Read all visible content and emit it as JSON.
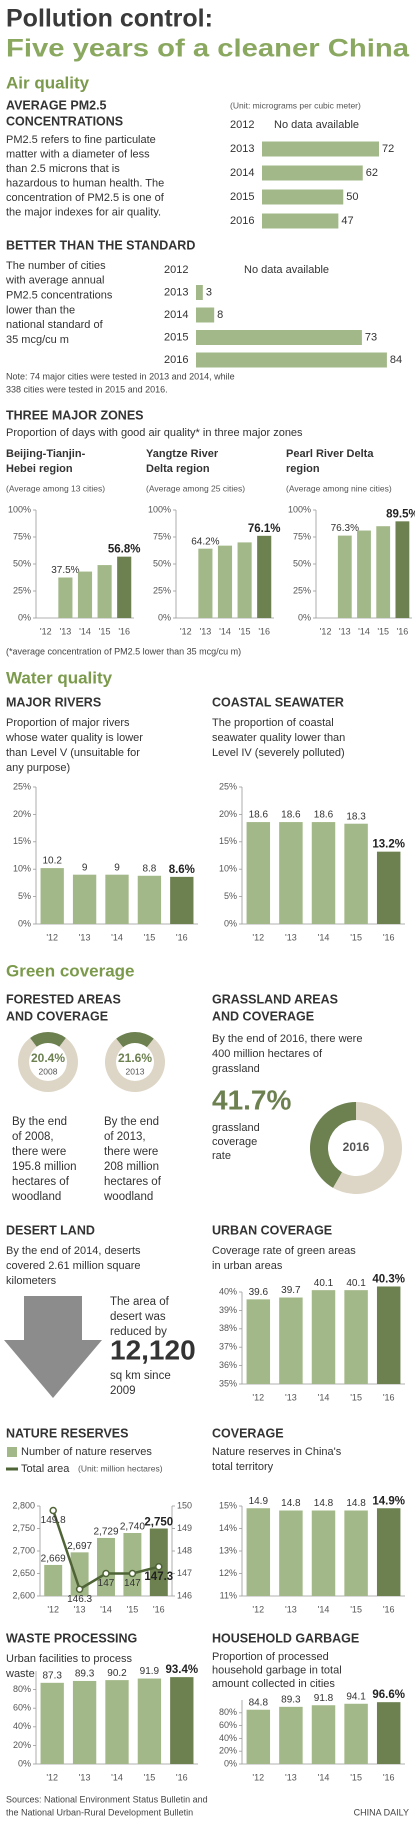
{
  "header": {
    "title": "Pollution control:",
    "subtitle": "Five years of a cleaner China"
  },
  "sections": [
    "Air quality",
    "Water quality",
    "Green coverage"
  ],
  "zones": {
    "title": "THREE MAJOR ZONES",
    "subtitle": "Proportion of days with good air quality* in three major zones",
    "footnote": "(*average concentration of PM2.5 lower than 35 mcg/cu m)"
  },
  "forest": {
    "title": [
      "FORESTED AREAS",
      "AND COVERAGE"
    ]
  },
  "desert": {
    "title": "DESERT LAND",
    "description": [
      "By the end of 2014, deserts",
      "covered 2.61 million square",
      "kilometers"
    ],
    "callout": [
      "The area of",
      "desert was",
      "reduced by"
    ],
    "value": "12,120",
    "unit": [
      "sq km since",
      "2009"
    ]
  },
  "footer": {
    "sources": [
      "Sources: National Environment Status Bulletin and",
      "the National Urban-Rural Development Bulletin"
    ],
    "credit": "CHINA DAILY"
  },
  "chart_data": [
    {
      "type": "hbar",
      "title": [
        "AVERAGE PM2.5",
        "CONCENTRATIONS"
      ],
      "description": [
        "PM2.5 refers to fine particulate",
        "matter with a diameter of less",
        "than 2.5 microns that is",
        "hazardous to human health. The",
        "concentration of PM2.5 is one of",
        "the major indexes for air quality."
      ],
      "unit": "(Unit: micrograms per cubic meter)",
      "categories": [
        "2012",
        "2013",
        "2014",
        "2015",
        "2016"
      ],
      "values": [
        null,
        72,
        62,
        50,
        47
      ],
      "value_labels": [
        "No data available",
        "72",
        "62",
        "50",
        "47"
      ],
      "xlim": [
        0,
        80
      ],
      "color": "#a3b889"
    },
    {
      "type": "hbar",
      "title": "BETTER THAN THE STANDARD",
      "description": [
        "The number of cities",
        "with average annual",
        "PM2.5 concentrations",
        "lower than the",
        "national standard of",
        "35 mcg/cu m"
      ],
      "note": [
        "Note: 74 major cities were tested in 2013 and 2014, while",
        "338 cities were tested in 2015 and 2016."
      ],
      "categories": [
        "2012",
        "2013",
        "2014",
        "2015",
        "2016"
      ],
      "values": [
        null,
        3,
        8,
        73,
        84
      ],
      "value_labels": [
        "No data available",
        "3",
        "8",
        "73",
        "84"
      ],
      "xlim": [
        0,
        88
      ],
      "color": "#a3b889"
    },
    {
      "type": "bar",
      "title": [
        "Beijing-Tianjin-",
        "Hebei region"
      ],
      "description": "(Average among 13 cities)",
      "categories": [
        "'12",
        "'13",
        "'14",
        "'15",
        "'16"
      ],
      "values": [
        null,
        37.5,
        43,
        49,
        56.8
      ],
      "value_labels": [
        null,
        "37.5%",
        null,
        null,
        "56.8%"
      ],
      "ylim": [
        0,
        100
      ],
      "yticks": [
        {
          "value": 0,
          "label": "0%"
        },
        {
          "value": 25,
          "label": "25%"
        },
        {
          "value": 50,
          "label": "50%"
        },
        {
          "value": 75,
          "label": "75%"
        },
        {
          "value": 100,
          "label": "100%"
        }
      ],
      "color": "#a3b889",
      "highlight_color": "#6c8050"
    },
    {
      "type": "bar",
      "title": [
        "Yangtze River",
        "Delta region"
      ],
      "description": "(Average among 25 cities)",
      "categories": [
        "'12",
        "'13",
        "'14",
        "'15",
        "'16"
      ],
      "values": [
        null,
        64.2,
        67,
        70,
        76.1
      ],
      "value_labels": [
        null,
        "64.2%",
        null,
        null,
        "76.1%"
      ],
      "ylim": [
        0,
        100
      ],
      "yticks": [
        {
          "value": 0,
          "label": "0%"
        },
        {
          "value": 25,
          "label": "25%"
        },
        {
          "value": 50,
          "label": "50%"
        },
        {
          "value": 75,
          "label": "75%"
        },
        {
          "value": 100,
          "label": "100%"
        }
      ],
      "color": "#a3b889",
      "highlight_color": "#6c8050"
    },
    {
      "type": "bar",
      "title": [
        "Pearl River Delta",
        "region"
      ],
      "description": "(Average among nine cities)",
      "categories": [
        "'12",
        "'13",
        "'14",
        "'15",
        "'16"
      ],
      "values": [
        null,
        76.3,
        81,
        85,
        89.5
      ],
      "value_labels": [
        null,
        "76.3%",
        null,
        null,
        "89.5%"
      ],
      "ylim": [
        0,
        100
      ],
      "yticks": [
        {
          "value": 0,
          "label": "0%"
        },
        {
          "value": 25,
          "label": "25%"
        },
        {
          "value": 50,
          "label": "50%"
        },
        {
          "value": 75,
          "label": "75%"
        },
        {
          "value": 100,
          "label": "100%"
        }
      ],
      "color": "#a3b889",
      "highlight_color": "#6c8050"
    },
    {
      "type": "bar",
      "title": "MAJOR RIVERS",
      "description": [
        "Proportion of major rivers",
        "whose water quality is lower",
        "than Level V (unsuitable for",
        "any purpose)"
      ],
      "categories": [
        "'12",
        "'13",
        "'14",
        "'15",
        "'16"
      ],
      "values": [
        10.2,
        9,
        9,
        8.8,
        8.6
      ],
      "value_labels": [
        "10.2",
        "9",
        "9",
        "8.8",
        "8.6%"
      ],
      "ylim": [
        0,
        25
      ],
      "yticks": [
        {
          "value": 0,
          "label": "0%"
        },
        {
          "value": 5,
          "label": "5%"
        },
        {
          "value": 10,
          "label": "10%"
        },
        {
          "value": 15,
          "label": "15%"
        },
        {
          "value": 20,
          "label": "20%"
        },
        {
          "value": 25,
          "label": "25%"
        }
      ],
      "color": "#a3b889",
      "highlight_color": "#6c8050"
    },
    {
      "type": "bar",
      "title": "COASTAL SEAWATER",
      "description": [
        "The proportion of coastal",
        "seawater quality lower than",
        "Level IV (severely polluted)"
      ],
      "categories": [
        "'12",
        "'13",
        "'14",
        "'15",
        "'16"
      ],
      "values": [
        18.6,
        18.6,
        18.6,
        18.3,
        13.2
      ],
      "value_labels": [
        "18.6",
        "18.6",
        "18.6",
        "18.3",
        "13.2%"
      ],
      "ylim": [
        0,
        25
      ],
      "yticks": [
        {
          "value": 0,
          "label": "0%"
        },
        {
          "value": 5,
          "label": "5%"
        },
        {
          "value": 10,
          "label": "10%"
        },
        {
          "value": 15,
          "label": "15%"
        },
        {
          "value": 20,
          "label": "20%"
        },
        {
          "value": 25,
          "label": "25%"
        }
      ],
      "color": "#a3b889",
      "highlight_color": "#6c8050"
    },
    {
      "type": "donut",
      "center_label": "2008",
      "description": [
        "By the end",
        "of 2008,",
        "there were",
        "195.8 million",
        "hectares of",
        "woodland"
      ],
      "values": [
        20.4,
        79.6
      ],
      "value_labels": [
        "20.4%",
        null
      ],
      "colors": [
        "#6c8050",
        "#ddd5c5"
      ]
    },
    {
      "type": "donut",
      "center_label": "2013",
      "description": [
        "By the end",
        "of 2013,",
        "there were",
        "208 million",
        "hectares of",
        "woodland"
      ],
      "values": [
        21.6,
        78.4
      ],
      "value_labels": [
        "21.6%",
        null
      ],
      "colors": [
        "#6c8050",
        "#ddd5c5"
      ]
    },
    {
      "type": "donut",
      "title": [
        "GRASSLAND AREAS",
        "AND COVERAGE"
      ],
      "description": [
        "By the end of 2016, there were",
        "400 million hectares of",
        "grassland"
      ],
      "caption": [
        "grassland",
        "coverage",
        "rate"
      ],
      "center_label": "2016",
      "values": [
        41.7,
        58.3
      ],
      "value_labels": [
        "41.7%",
        null
      ],
      "colors": [
        "#6c8050",
        "#ddd5c5"
      ]
    },
    {
      "type": "bar",
      "title": "URBAN COVERAGE",
      "description": [
        "Coverage rate of green areas",
        "in urban areas"
      ],
      "categories": [
        "'12",
        "'13",
        "'14",
        "'15",
        "'16"
      ],
      "values": [
        39.6,
        39.7,
        40.1,
        40.1,
        40.3
      ],
      "value_labels": [
        "39.6",
        "39.7",
        "40.1",
        "40.1",
        "40.3%"
      ],
      "ylim": [
        35,
        40
      ],
      "yticks": [
        {
          "value": 35,
          "label": "35%"
        },
        {
          "value": 36,
          "label": "36%"
        },
        {
          "value": 37,
          "label": "37%"
        },
        {
          "value": 38,
          "label": "38%"
        },
        {
          "value": 39,
          "label": "39%"
        },
        {
          "value": 40,
          "label": "40%"
        }
      ],
      "color": "#a3b889",
      "highlight_color": "#6c8050"
    },
    {
      "type": "bar_line",
      "title": "NATURE RESERVES",
      "y2_unit": "(Unit: million hectares)",
      "categories": [
        "'12",
        "'13",
        "'14",
        "'15",
        "'16"
      ],
      "series": [
        {
          "name": "Number of nature reserves",
          "color": "#a3b889",
          "highlight_color": "#6c8050",
          "values": [
            2669,
            2697,
            2729,
            2740,
            2750
          ],
          "value_labels": [
            "2,669",
            "2,697",
            "2,729",
            "2,740",
            "2,750"
          ]
        },
        {
          "name": "Total area",
          "color": "#4f6436",
          "axis": "y2",
          "values": [
            149.8,
            146.3,
            147,
            147,
            147.3
          ]
        }
      ],
      "ylim": [
        2600,
        2800
      ],
      "yticks": [
        {
          "value": 2600,
          "label": "2,600"
        },
        {
          "value": 2650,
          "label": "2,650"
        },
        {
          "value": 2700,
          "label": "2,700"
        },
        {
          "value": 2750,
          "label": "2,750"
        },
        {
          "value": 2800,
          "label": "2,800"
        }
      ],
      "y2lim": [
        146,
        150
      ],
      "y2ticks": [
        146,
        147,
        148,
        149,
        150
      ]
    },
    {
      "type": "bar",
      "title": "COVERAGE",
      "description": [
        "Nature reserves in China's",
        "total territory"
      ],
      "categories": [
        "'12",
        "'13",
        "'14",
        "'15",
        "'16"
      ],
      "values": [
        14.9,
        14.8,
        14.8,
        14.8,
        14.9
      ],
      "value_labels": [
        "14.9",
        "14.8",
        "14.8",
        "14.8",
        "14.9%"
      ],
      "ylim": [
        11,
        15
      ],
      "yticks": [
        {
          "value": 11,
          "label": "11%"
        },
        {
          "value": 12,
          "label": "12%"
        },
        {
          "value": 13,
          "label": "13%"
        },
        {
          "value": 14,
          "label": "14%"
        },
        {
          "value": 15,
          "label": "15%"
        }
      ],
      "color": "#a3b889",
      "highlight_color": "#6c8050"
    },
    {
      "type": "bar",
      "title": "WASTE PROCESSING",
      "description": [
        "Urban facilities to process",
        "waste"
      ],
      "categories": [
        "'12",
        "'13",
        "'14",
        "'15",
        "'16"
      ],
      "values": [
        87.3,
        89.3,
        90.2,
        91.9,
        93.4
      ],
      "value_labels": [
        "87.3",
        "89.3",
        "90.2",
        "91.9",
        "93.4%"
      ],
      "ylim": [
        0,
        100
      ],
      "yticks": [
        {
          "value": 0,
          "label": "0%"
        },
        {
          "value": 20,
          "label": "20%"
        },
        {
          "value": 40,
          "label": "40%"
        },
        {
          "value": 60,
          "label": "60%"
        },
        {
          "value": 80,
          "label": "80%"
        }
      ],
      "color": "#a3b889",
      "highlight_color": "#6c8050"
    },
    {
      "type": "bar",
      "title": "HOUSEHOLD GARBAGE",
      "description": [
        "Proportion of processed",
        "household garbage in total",
        "amount collected in cities"
      ],
      "categories": [
        "'12",
        "'13",
        "'14",
        "'15",
        "'16"
      ],
      "values": [
        84.8,
        89.3,
        91.8,
        94.1,
        96.6
      ],
      "value_labels": [
        "84.8",
        "89.3",
        "91.8",
        "94.1",
        "96.6%"
      ],
      "ylim": [
        0,
        100
      ],
      "yticks": [
        {
          "value": 0,
          "label": "0%"
        },
        {
          "value": 20,
          "label": "20%"
        },
        {
          "value": 40,
          "label": "40%"
        },
        {
          "value": 60,
          "label": "60%"
        },
        {
          "value": 80,
          "label": "80%"
        }
      ],
      "color": "#a3b889",
      "highlight_color": "#6c8050"
    }
  ]
}
